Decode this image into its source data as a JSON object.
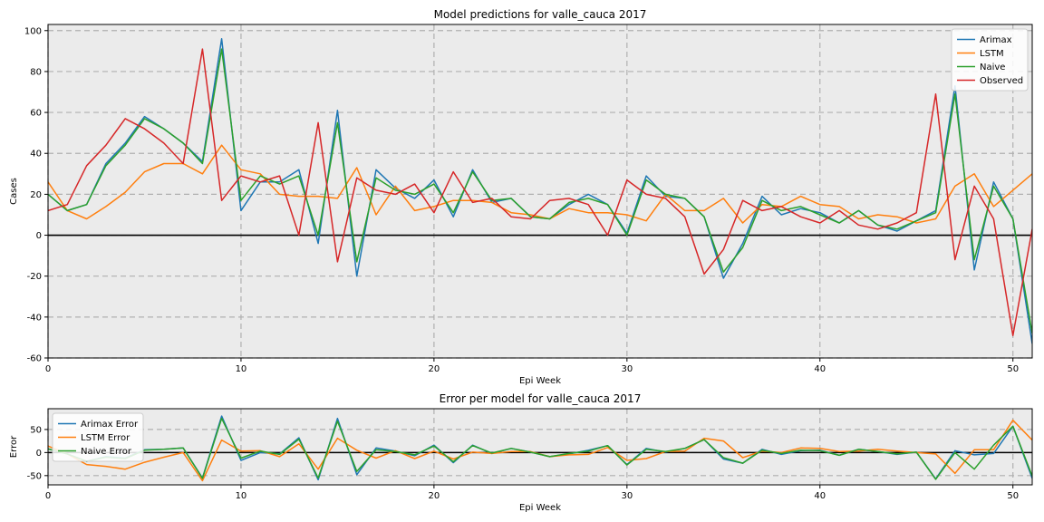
{
  "chart_data": [
    {
      "type": "line",
      "title": "Model predictions for valle_cauca 2017",
      "xlabel": "Epi Week",
      "ylabel": "Cases",
      "xlim": [
        0,
        51
      ],
      "ylim": [
        -60,
        103
      ],
      "xticks": [
        0,
        10,
        20,
        30,
        40,
        50
      ],
      "yticks": [
        -60,
        -40,
        -20,
        0,
        20,
        40,
        60,
        80,
        100
      ],
      "grid": true,
      "legend_position": "top-right",
      "zero_line": true,
      "x": [
        0,
        1,
        2,
        3,
        4,
        5,
        6,
        7,
        8,
        9,
        10,
        11,
        12,
        13,
        14,
        15,
        16,
        17,
        18,
        19,
        20,
        21,
        22,
        23,
        24,
        25,
        26,
        27,
        28,
        29,
        30,
        31,
        32,
        33,
        34,
        35,
        36,
        37,
        38,
        39,
        40,
        41,
        42,
        43,
        44,
        45,
        46,
        47,
        48,
        49,
        50,
        51
      ],
      "series": [
        {
          "name": "Arimax",
          "color": "#1f77b4",
          "values": [
            20,
            12,
            15,
            35,
            45,
            58,
            52,
            45,
            36,
            96,
            12,
            26,
            26,
            32,
            -4,
            61,
            -20,
            32,
            23,
            18,
            27,
            9,
            32,
            16,
            18,
            9,
            8,
            15,
            20,
            15,
            1,
            29,
            19,
            18,
            9,
            -21,
            -4,
            19,
            10,
            13,
            11,
            6,
            12,
            5,
            2,
            7,
            12,
            73,
            -17,
            26,
            8,
            -53
          ]
        },
        {
          "name": "LSTM",
          "color": "#ff7f0e",
          "values": [
            26,
            12,
            8,
            14,
            21,
            31,
            35,
            35,
            30,
            44,
            32,
            30,
            20,
            19,
            19,
            18,
            33,
            10,
            24,
            12,
            14,
            17,
            17,
            16,
            11,
            10,
            8,
            13,
            11,
            11,
            10,
            7,
            20,
            12,
            12,
            18,
            6,
            15,
            14,
            19,
            15,
            14,
            8,
            10,
            9,
            6,
            8,
            24,
            30,
            14,
            22,
            30
          ]
        },
        {
          "name": "Naive",
          "color": "#2ca02c",
          "values": [
            20,
            12,
            15,
            34,
            44,
            57,
            52,
            45,
            35,
            91,
            17,
            29,
            25,
            29,
            0,
            55,
            -13,
            28,
            22,
            20,
            25,
            11,
            31,
            17,
            18,
            9,
            8,
            16,
            18,
            15,
            0,
            27,
            20,
            18,
            9,
            -18,
            -6,
            17,
            12,
            14,
            10,
            6,
            12,
            5,
            3,
            7,
            11,
            69,
            -12,
            24,
            8,
            -48
          ]
        },
        {
          "name": "Observed",
          "color": "#d62728",
          "values": [
            12,
            15,
            34,
            44,
            57,
            52,
            45,
            35,
            91,
            17,
            29,
            26,
            29,
            0,
            55,
            -13,
            28,
            22,
            20,
            25,
            11,
            31,
            16,
            18,
            9,
            8,
            17,
            18,
            15,
            0,
            27,
            20,
            18,
            9,
            -19,
            -7,
            17,
            12,
            14,
            9,
            6,
            12,
            5,
            3,
            6,
            11,
            69,
            -12,
            24,
            8,
            -49,
            3
          ]
        }
      ]
    },
    {
      "type": "line",
      "title": "Error per model for valle_cauca 2017",
      "xlabel": "Epi Week",
      "ylabel": "Error",
      "xlim": [
        0,
        51
      ],
      "ylim": [
        -70,
        95
      ],
      "xticks": [
        0,
        10,
        20,
        30,
        40,
        50
      ],
      "yticks": [
        -50,
        0,
        50
      ],
      "grid": true,
      "legend_position": "top-left",
      "zero_line": true,
      "x": [
        0,
        1,
        2,
        3,
        4,
        5,
        6,
        7,
        8,
        9,
        10,
        11,
        12,
        13,
        14,
        15,
        16,
        17,
        18,
        19,
        20,
        21,
        22,
        23,
        24,
        25,
        26,
        27,
        28,
        29,
        30,
        31,
        32,
        33,
        34,
        35,
        36,
        37,
        38,
        39,
        40,
        41,
        42,
        43,
        44,
        45,
        46,
        47,
        48,
        49,
        50,
        51
      ],
      "series": [
        {
          "name": "Arimax Error",
          "color": "#1f77b4",
          "values": [
            8,
            -3,
            -19,
            -9,
            -12,
            6,
            7,
            10,
            -55,
            79,
            -17,
            0,
            -3,
            32,
            -59,
            74,
            -48,
            10,
            3,
            -7,
            16,
            -22,
            16,
            -2,
            9,
            1,
            -9,
            -3,
            5,
            15,
            -26,
            9,
            1,
            9,
            28,
            -14,
            -23,
            7,
            -4,
            4,
            5,
            -6,
            7,
            2,
            -4,
            1,
            -57,
            4,
            -5,
            -2,
            57,
            -56
          ]
        },
        {
          "name": "LSTM Error",
          "color": "#ff7f0e",
          "values": [
            14,
            -3,
            -26,
            -30,
            -36,
            -21,
            -10,
            0,
            -61,
            27,
            3,
            4,
            -9,
            19,
            -36,
            31,
            5,
            -12,
            4,
            -13,
            3,
            -14,
            1,
            -2,
            2,
            2,
            -9,
            -5,
            -4,
            11,
            -17,
            -13,
            2,
            3,
            31,
            25,
            -11,
            3,
            0,
            10,
            9,
            2,
            3,
            7,
            3,
            0,
            -3,
            -45,
            6,
            6,
            70,
            27
          ]
        },
        {
          "name": "Naive Error",
          "color": "#2ca02c",
          "values": [
            8,
            -3,
            -19,
            -10,
            -13,
            5,
            7,
            10,
            -56,
            74,
            -12,
            3,
            -4,
            29,
            -55,
            68,
            -41,
            6,
            2,
            -5,
            14,
            -20,
            15,
            -1,
            9,
            1,
            -9,
            -2,
            3,
            15,
            -27,
            7,
            2,
            9,
            28,
            -11,
            -23,
            5,
            -2,
            5,
            4,
            -6,
            7,
            2,
            -3,
            1,
            -58,
            0,
            -36,
            16,
            57,
            -51
          ]
        }
      ]
    }
  ]
}
